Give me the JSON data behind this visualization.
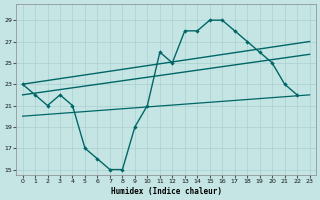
{
  "xlabel": "Humidex (Indice chaleur)",
  "bg_color": "#c5e5e5",
  "grid_color": "#aacfcf",
  "line_color": "#006666",
  "xlim": [
    -0.5,
    23.5
  ],
  "ylim": [
    14.5,
    30.5
  ],
  "xticks": [
    0,
    1,
    2,
    3,
    4,
    5,
    6,
    7,
    8,
    9,
    10,
    11,
    12,
    13,
    14,
    15,
    16,
    17,
    18,
    19,
    20,
    21,
    22,
    23
  ],
  "yticks": [
    15,
    17,
    19,
    21,
    23,
    25,
    27,
    29
  ],
  "main_x": [
    0,
    1,
    2,
    3,
    4,
    5,
    6,
    7,
    8,
    9,
    10,
    11,
    12,
    13,
    14,
    15,
    16,
    17,
    18,
    19,
    20,
    21,
    22
  ],
  "main_y": [
    23,
    22,
    21,
    22,
    21,
    17,
    16,
    15,
    15,
    19,
    21,
    26,
    25,
    28,
    28,
    29,
    29,
    28,
    27,
    26,
    25,
    23,
    22
  ],
  "trend1_x0": 0,
  "trend1_y0": 23.0,
  "trend1_x1": 23,
  "trend1_y1": 27.0,
  "trend2_x0": 0,
  "trend2_y0": 22.0,
  "trend2_x1": 23,
  "trend2_y1": 25.8,
  "trend3_x0": 0,
  "trend3_y0": 20.0,
  "trend3_x1": 23,
  "trend3_y1": 22.0
}
